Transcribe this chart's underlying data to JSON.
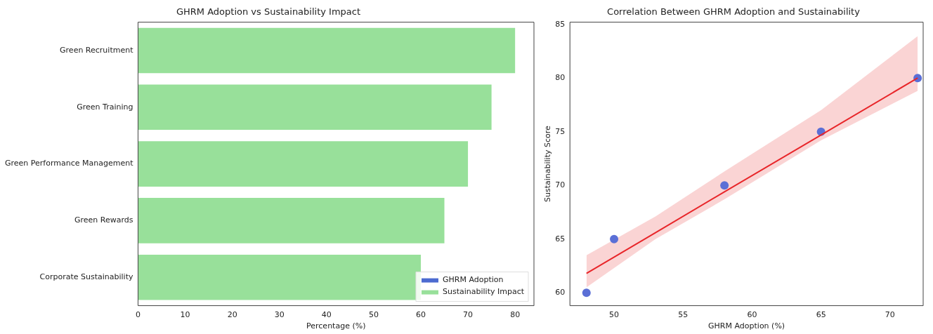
{
  "chart_data": [
    {
      "type": "bar",
      "orientation": "horizontal",
      "title": "GHRM Adoption vs Sustainability Impact",
      "xlabel": "Percentage (%)",
      "categories": [
        "Green Recruitment",
        "Green Training",
        "Green Performance Management",
        "Green Rewards",
        "Corporate Sustainability"
      ],
      "series": [
        {
          "name": "GHRM Adoption",
          "color": "#4c6bd0",
          "values": [
            null,
            null,
            null,
            null,
            null
          ]
        },
        {
          "name": "Sustainability Impact",
          "color": "#98e09a",
          "values": [
            80,
            75,
            70,
            65,
            60
          ]
        }
      ],
      "xlim": [
        0,
        84
      ],
      "xticks": [
        0,
        10,
        20,
        30,
        40,
        50,
        60,
        70,
        80
      ],
      "legend": "bottom right",
      "grid": false
    },
    {
      "type": "scatter",
      "title": "Correlation Between GHRM Adoption and Sustainability",
      "xlabel": "GHRM Adoption (%)",
      "ylabel": "Sustainability Score",
      "series": [
        {
          "color": "#5b6fd6",
          "marker": "circle",
          "x": [
            48,
            50,
            58,
            65,
            72
          ],
          "values": [
            60,
            65,
            70,
            75,
            80
          ]
        },
        {
          "type": "line",
          "color": "#e8262a",
          "marker": "none",
          "x": [
            48,
            53,
            58,
            65,
            72
          ],
          "values": [
            61.8,
            65.6,
            69.4,
            74.7,
            80.0
          ],
          "lower": [
            60.5,
            65.0,
            68.7,
            74.2,
            78.8
          ],
          "upper": [
            63.5,
            67.1,
            71.3,
            77.0,
            83.9
          ]
        }
      ],
      "xlim": [
        46.8,
        72.4
      ],
      "xticks": [
        50,
        55,
        60,
        65,
        70
      ],
      "ylim": [
        58.8,
        85.2
      ],
      "yticks": [
        60,
        65,
        70,
        75,
        80,
        85
      ],
      "legend": false,
      "grid": false
    }
  ]
}
